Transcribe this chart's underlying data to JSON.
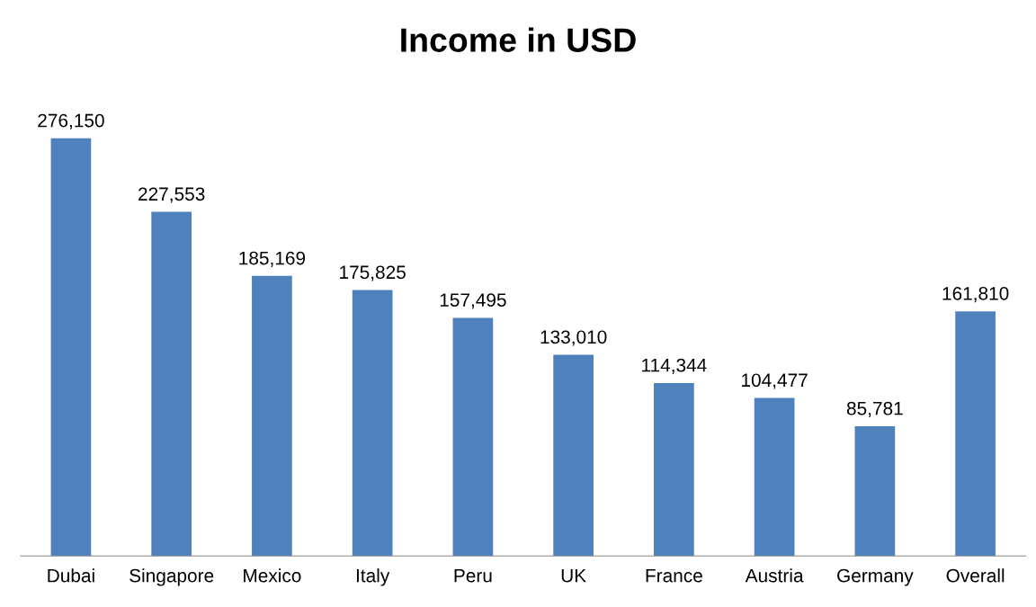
{
  "chart_data": {
    "type": "bar",
    "title": "Income in USD",
    "categories": [
      "Dubai",
      "Singapore",
      "Mexico",
      "Italy",
      "Peru",
      "UK",
      "France",
      "Austria",
      "Germany",
      "Overall"
    ],
    "values": [
      276150,
      227553,
      185169,
      175825,
      157495,
      133010,
      114344,
      104477,
      85781,
      161810
    ],
    "color": "#4f81bd",
    "value_labels": [
      "276,150",
      "227,553",
      "185,169",
      "175,825",
      "157,495",
      "133,010",
      "114,344",
      "104,477",
      "85,781",
      "161,810"
    ],
    "tick_labels": "x",
    "grid": false
  }
}
